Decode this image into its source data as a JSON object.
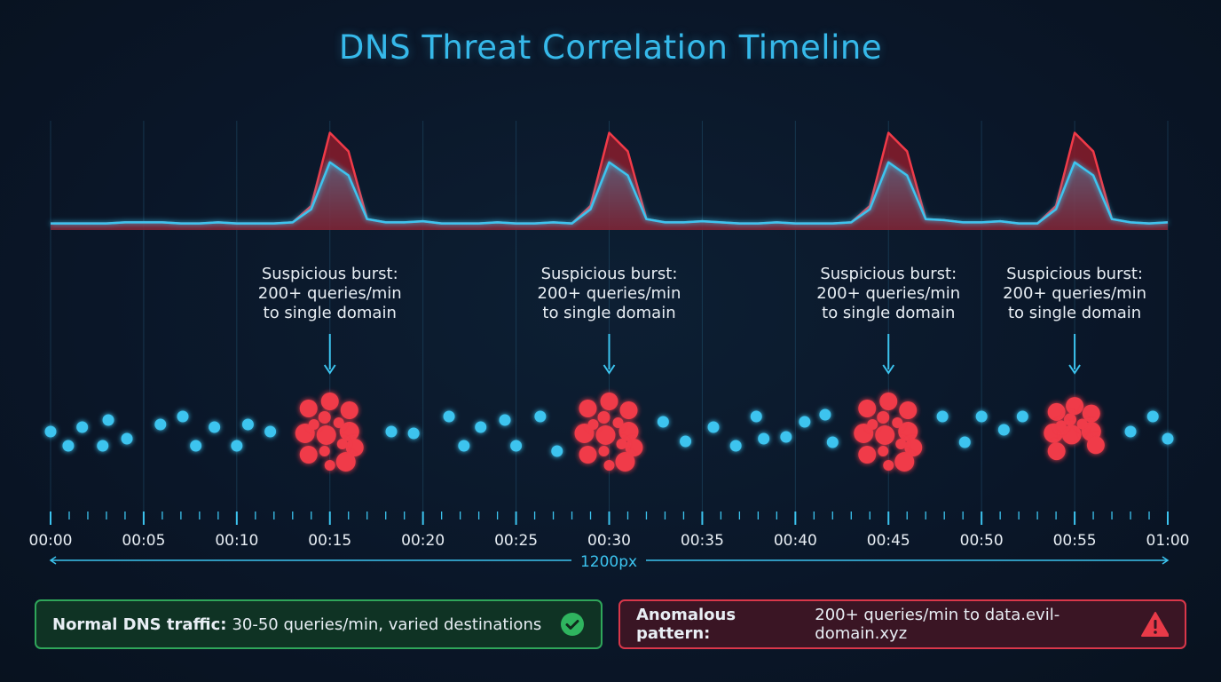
{
  "title": "DNS Threat Correlation Timeline",
  "colors": {
    "normal": "#3cc4ef",
    "anomaly": "#f03a48",
    "title": "#36b9ea",
    "good": "#2fa65a"
  },
  "chart_data": [
    {
      "type": "area",
      "xlim": [
        0,
        60
      ],
      "ylim": [
        0,
        100
      ],
      "grid": true,
      "series": [
        {
          "color": "#f03a48",
          "values": [
            6,
            6,
            6,
            6,
            7,
            7,
            7,
            6,
            6,
            7,
            6,
            6,
            6,
            7,
            22,
            89,
            72,
            10,
            7,
            7,
            8,
            6,
            6,
            6,
            7,
            6,
            6,
            7,
            6,
            22,
            89,
            72,
            10,
            7,
            7,
            8,
            7,
            6,
            6,
            7,
            6,
            6,
            6,
            7,
            22,
            89,
            72,
            10,
            9,
            7,
            7,
            8,
            6,
            6,
            22,
            89,
            72,
            10,
            7,
            6,
            7
          ]
        },
        {
          "color": "#3cc4ef",
          "values": [
            6,
            6,
            6,
            6,
            7,
            7,
            7,
            6,
            6,
            7,
            6,
            6,
            6,
            7,
            19,
            62,
            50,
            10,
            7,
            7,
            8,
            6,
            6,
            6,
            7,
            6,
            6,
            7,
            6,
            19,
            62,
            50,
            10,
            7,
            7,
            8,
            7,
            6,
            6,
            7,
            6,
            6,
            6,
            7,
            19,
            62,
            50,
            10,
            9,
            7,
            7,
            8,
            6,
            6,
            19,
            62,
            50,
            10,
            7,
            6,
            7
          ]
        }
      ]
    },
    {
      "type": "scatter",
      "xlim": [
        0,
        60
      ],
      "normal_query_times": [
        0,
        0.95,
        1.7,
        2.8,
        3.1,
        4.1,
        5.9,
        7.1,
        7.8,
        8.8,
        10,
        10.6,
        11.8,
        18.3,
        19.5,
        21.4,
        22.2,
        23.1,
        24.4,
        25,
        26.3,
        27.2,
        32.9,
        34.1,
        35.6,
        36.8,
        37.9,
        38.3,
        39.5,
        40.5,
        41.6,
        42,
        47.9,
        49.1,
        50,
        51.2,
        52.2,
        58,
        59.2,
        60
      ],
      "burst_times": [
        15,
        30,
        45,
        55
      ],
      "tick_labels": [
        "00:00",
        "00:05",
        "00:10",
        "00:15",
        "00:20",
        "00:25",
        "00:30",
        "00:35",
        "00:40",
        "00:45",
        "00:50",
        "00:55",
        "01:00"
      ],
      "annotations": [
        {
          "t": 15,
          "lines": [
            "Suspicious burst:",
            "200+ queries/min",
            "to single domain"
          ]
        },
        {
          "t": 30,
          "lines": [
            "Suspicious burst:",
            "200+ queries/min",
            "to single domain"
          ]
        },
        {
          "t": 45,
          "lines": [
            "Suspicious burst:",
            "200+ queries/min",
            "to single domain"
          ]
        },
        {
          "t": 55,
          "lines": [
            "Suspicious burst:",
            "200+ queries/min",
            "to single domain"
          ]
        }
      ],
      "width_label": "1200px"
    }
  ],
  "legend": {
    "normal": {
      "bold": "Normal DNS traffic:",
      "text": "30-50 queries/min, varied destinations",
      "icon": "check-circle-icon"
    },
    "anomaly": {
      "bold": "Anomalous pattern:",
      "text": "200+ queries/min to data.evil-domain.xyz",
      "icon": "warning-triangle-icon"
    }
  }
}
